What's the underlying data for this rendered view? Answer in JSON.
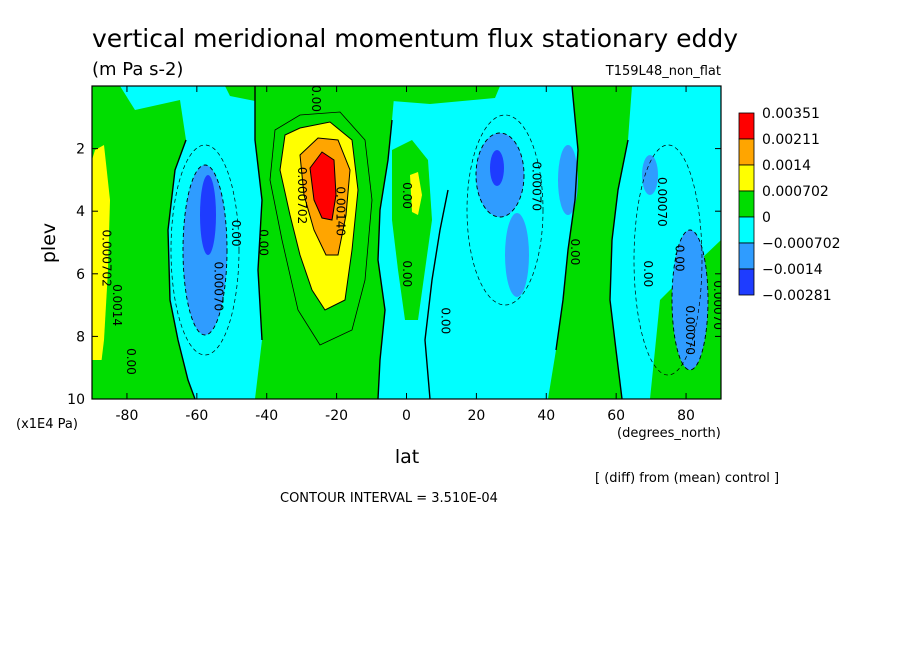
{
  "figure": {
    "title": "vertical meridional momentum flux stationary eddy",
    "units": "(m Pa s-2)",
    "run_label": "T159L48_non_flat",
    "y_unit_note": "(x1E4 Pa)",
    "x_unit_note": "(degrees_north)",
    "diff_note": "[ (diff) from (mean) control ]",
    "contour_interval": "CONTOUR INTERVAL = 3.510E-04"
  },
  "chart_data": {
    "type": "heatmap",
    "title": "vertical meridional momentum flux stationary eddy",
    "xlabel": "lat",
    "ylabel": "plev",
    "xlim": [
      -90,
      90
    ],
    "ylim": [
      10,
      0
    ],
    "x_ticks": [
      -80,
      -60,
      -40,
      -20,
      0,
      20,
      40,
      60,
      80
    ],
    "x_tick_labels": [
      "-80",
      "-60",
      "-40",
      "-20",
      "0",
      "20",
      "40",
      "60",
      "80"
    ],
    "y_ticks": [
      2,
      4,
      6,
      8,
      10
    ],
    "y_tick_labels": [
      "2",
      "4",
      "6",
      "8",
      "10"
    ],
    "legend_position": "right",
    "colorbar": {
      "labels": [
        "0.00351",
        "0.00211",
        "0.0014",
        "0.000702",
        "0",
        "−0.000702",
        "−0.0014",
        "−0.00281"
      ],
      "colors": [
        "#ff0000",
        "#ffa500",
        "#ffff00",
        "#00dd00",
        "#00ffff",
        "#2f9cff",
        "#1e3cff"
      ]
    },
    "contour_interval": 0.000351,
    "features": [
      {
        "lat": -25,
        "plev": 3.2,
        "value": 0.0032,
        "sign": "positive"
      },
      {
        "lat": -87,
        "plev": 5.0,
        "value": 0.0009,
        "sign": "positive"
      },
      {
        "lat": 5,
        "plev": 3.5,
        "value": 0.0008,
        "sign": "positive"
      },
      {
        "lat": -57,
        "plev": 4.0,
        "value": -0.0024,
        "sign": "negative"
      },
      {
        "lat": 30,
        "plev": 3.2,
        "value": -0.0016,
        "sign": "negative"
      },
      {
        "lat": 50,
        "plev": 3.0,
        "value": -0.0012,
        "sign": "negative"
      },
      {
        "lat": 83,
        "plev": 4.0,
        "value": -0.0013,
        "sign": "negative"
      }
    ],
    "contour_labels": [
      {
        "text": "0.000702",
        "lat": -87,
        "plev": 5.5
      },
      {
        "text": "0.0014",
        "lat": -84,
        "plev": 7.0
      },
      {
        "text": "0.00",
        "lat": -80,
        "plev": 8.8
      },
      {
        "text": "0.00070",
        "lat": -55,
        "plev": 6.4
      },
      {
        "text": "0.00",
        "lat": -50,
        "plev": 4.7
      },
      {
        "text": "0.00",
        "lat": -42,
        "plev": 5.0
      },
      {
        "text": "0.000702",
        "lat": -31,
        "plev": 3.5
      },
      {
        "text": "0.00140",
        "lat": -20,
        "plev": 4.0
      },
      {
        "text": "0.00",
        "lat": -1,
        "plev": 6.0
      },
      {
        "text": "0.00",
        "lat": -1,
        "plev": 3.5
      },
      {
        "text": "0.00",
        "lat": 10,
        "plev": 7.5
      },
      {
        "text": "0.00070",
        "lat": 36,
        "plev": 3.2
      },
      {
        "text": "0.00",
        "lat": 47,
        "plev": 5.3
      },
      {
        "text": "0.00070",
        "lat": 72,
        "plev": 3.7
      },
      {
        "text": "0.00",
        "lat": 68,
        "plev": 6.0
      },
      {
        "text": "0.00",
        "lat": 77,
        "plev": 5.5
      },
      {
        "text": "0.00070",
        "lat": 80,
        "plev": 7.8
      },
      {
        "text": "0.00070",
        "lat": 88,
        "plev": 7.0
      },
      {
        "text": "0.00",
        "lat": -27,
        "plev": 0.4
      }
    ]
  }
}
